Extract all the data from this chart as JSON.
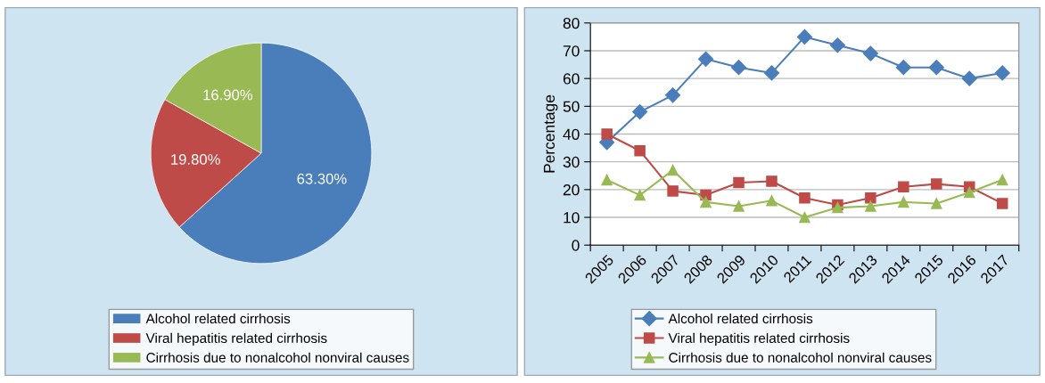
{
  "chart_data": [
    {
      "type": "pie",
      "categories": [
        "Alcohol related cirrhosis",
        "Viral hepatitis related cirrhosis",
        "Cirrhosis due to nonalcohol nonviral causes"
      ],
      "values": [
        63.3,
        19.8,
        16.9
      ],
      "colors": [
        "#4a7ebb",
        "#be4b48",
        "#98b954"
      ],
      "value_labels": [
        "63.30%",
        "19.80%",
        "16.90%"
      ],
      "legend": "bottom"
    },
    {
      "type": "line",
      "categories": [
        "2005",
        "2006",
        "2007",
        "2008",
        "2009",
        "2010",
        "2011",
        "2012",
        "2013",
        "2014",
        "2015",
        "2016",
        "2017"
      ],
      "ylabel": "Percentage",
      "ylim": [
        0,
        80
      ],
      "yticks": [
        0,
        10,
        20,
        30,
        40,
        50,
        60,
        70,
        80
      ],
      "grid": "y",
      "legend": "bottom",
      "series": [
        {
          "name": "Alcohol related cirrhosis",
          "color": "#4a7ebb",
          "marker": "diamond",
          "values": [
            37,
            48,
            54,
            67,
            64,
            62,
            75,
            72,
            69,
            64,
            64,
            60,
            62
          ]
        },
        {
          "name": "Viral hepatitis related cirrhosis",
          "color": "#be4b48",
          "marker": "square",
          "values": [
            40,
            34,
            19.5,
            18,
            22.5,
            23,
            17,
            14.5,
            17,
            21,
            22,
            21,
            15
          ]
        },
        {
          "name": "Cirrhosis due to nonalcohol nonviral causes",
          "color": "#98b954",
          "marker": "triangle",
          "values": [
            23.5,
            18,
            27,
            15.5,
            14,
            16,
            10,
            13.5,
            14,
            15.5,
            15,
            19,
            23.5
          ]
        }
      ]
    }
  ]
}
